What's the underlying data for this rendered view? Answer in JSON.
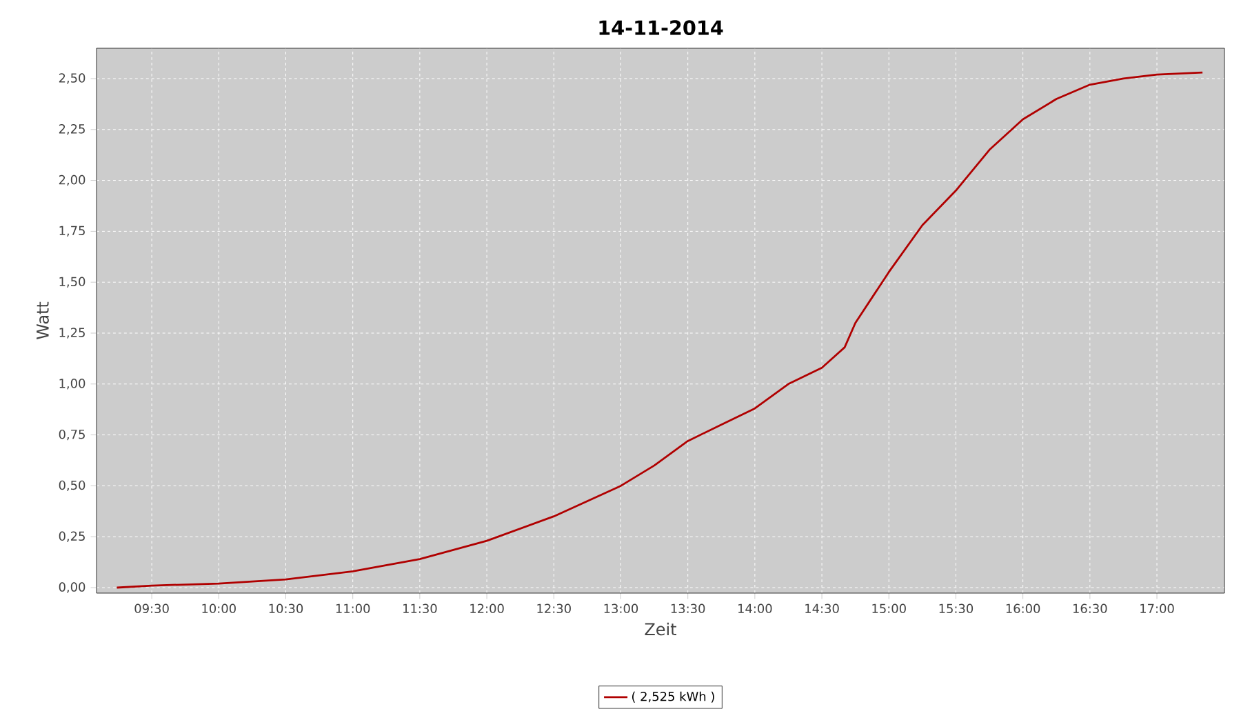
{
  "chart_data": {
    "type": "line",
    "title": "14-11-2014",
    "xlabel": "Zeit",
    "ylabel": "Watt",
    "x": [
      9.24,
      9.5,
      10.0,
      10.5,
      11.0,
      11.5,
      12.0,
      12.5,
      13.0,
      13.25,
      13.5,
      13.75,
      14.0,
      14.25,
      14.5,
      14.67,
      14.75,
      15.0,
      15.25,
      15.5,
      15.75,
      16.0,
      16.25,
      16.5,
      16.75,
      17.0,
      17.34
    ],
    "series": [
      {
        "name": "( 2,525 kWh )",
        "color": "#b00000",
        "values": [
          0.0,
          0.01,
          0.02,
          0.04,
          0.08,
          0.14,
          0.23,
          0.35,
          0.5,
          0.6,
          0.72,
          0.8,
          0.88,
          1.0,
          1.08,
          1.18,
          1.3,
          1.55,
          1.78,
          1.95,
          2.15,
          2.3,
          2.4,
          2.47,
          2.5,
          2.52,
          2.53
        ]
      }
    ],
    "xlim": [
      9.088,
      17.504
    ],
    "ylim": [
      -0.027,
      2.649
    ],
    "xticks": [
      {
        "value": 9.5,
        "label": "09:30"
      },
      {
        "value": 10.0,
        "label": "10:00"
      },
      {
        "value": 10.5,
        "label": "10:30"
      },
      {
        "value": 11.0,
        "label": "11:00"
      },
      {
        "value": 11.5,
        "label": "11:30"
      },
      {
        "value": 12.0,
        "label": "12:00"
      },
      {
        "value": 12.5,
        "label": "12:30"
      },
      {
        "value": 13.0,
        "label": "13:00"
      },
      {
        "value": 13.5,
        "label": "13:30"
      },
      {
        "value": 14.0,
        "label": "14:00"
      },
      {
        "value": 14.5,
        "label": "14:30"
      },
      {
        "value": 15.0,
        "label": "15:00"
      },
      {
        "value": 15.5,
        "label": "15:30"
      },
      {
        "value": 16.0,
        "label": "16:00"
      },
      {
        "value": 16.5,
        "label": "16:30"
      },
      {
        "value": 17.0,
        "label": "17:00"
      }
    ],
    "yticks": [
      {
        "value": 0,
        "label": "0,00"
      },
      {
        "value": 0.25,
        "label": "0,25"
      },
      {
        "value": 0.5,
        "label": "0,50"
      },
      {
        "value": 0.75,
        "label": "0,75"
      },
      {
        "value": 1.0,
        "label": "1,00"
      },
      {
        "value": 1.25,
        "label": "1,25"
      },
      {
        "value": 1.5,
        "label": "1,50"
      },
      {
        "value": 1.75,
        "label": "1,75"
      },
      {
        "value": 2.0,
        "label": "2,00"
      },
      {
        "value": 2.25,
        "label": "2,25"
      },
      {
        "value": 2.5,
        "label": "2,50"
      }
    ],
    "grid": true,
    "legend": "bottom",
    "marker": "none",
    "line_style": "solid"
  }
}
